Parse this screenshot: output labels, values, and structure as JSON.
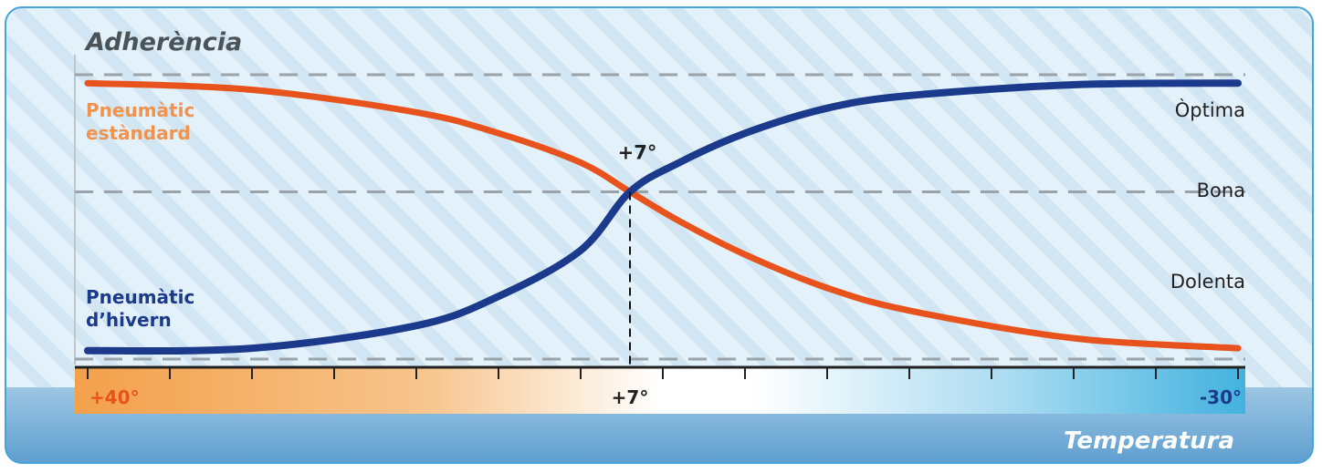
{
  "chart_data": {
    "type": "line",
    "title": "Adherència",
    "xlabel": "Temperatura",
    "ylabel": "Adherència",
    "x_axis": {
      "reversed": true,
      "min": -30,
      "max": 40,
      "tick_count": 15,
      "tick_labels": [
        "+40°",
        "+7°",
        "-30°"
      ],
      "tick_label_values": [
        40,
        7,
        -30
      ]
    },
    "y_levels": [
      {
        "label": "Òptima",
        "value": 3
      },
      {
        "label": "Bona",
        "value": 2
      },
      {
        "label": "Dolenta",
        "value": 1
      }
    ],
    "ylim": [
      0,
      3.4
    ],
    "dashed_lines_y": [
      0,
      2,
      3.4
    ],
    "crossover": {
      "x": 7,
      "y": 2,
      "label": "+7°"
    },
    "series": [
      {
        "name": "Pneumàtic estàndard",
        "color": "#e8521c",
        "x": [
          40,
          30,
          20,
          15,
          10,
          7,
          4,
          0,
          -5,
          -10,
          -20,
          -30
        ],
        "y": [
          3.3,
          3.22,
          2.95,
          2.7,
          2.35,
          2.0,
          1.65,
          1.25,
          0.85,
          0.58,
          0.25,
          0.13
        ]
      },
      {
        "name": "Pneumàtic d'hivern",
        "color": "#1b3a8c",
        "x": [
          40,
          30,
          20,
          15,
          10,
          7,
          4,
          0,
          -5,
          -10,
          -20,
          -30
        ],
        "y": [
          0.1,
          0.13,
          0.4,
          0.75,
          1.3,
          2.0,
          2.35,
          2.7,
          3.0,
          3.15,
          3.28,
          3.3
        ]
      }
    ],
    "series_labels": [
      {
        "lines": [
          "Pneumàtic",
          "estàndard"
        ],
        "color": "#f0934f"
      },
      {
        "lines": [
          "Pneumàtic",
          "d’hivern"
        ],
        "color": "#1b3a8c"
      }
    ],
    "grid": false,
    "legend": "inline-left"
  },
  "colors": {
    "background": "#e3f1fa",
    "hatch": "#d3e6f3",
    "frame": "#4aa3d6",
    "dash": "#9aa3aa",
    "warm": "#f3a04a",
    "cold": "#43b2df",
    "footer": "#72abd4",
    "title": "#4a5358",
    "warm_label": "#e8521c",
    "cold_label": "#1b3a8c"
  }
}
